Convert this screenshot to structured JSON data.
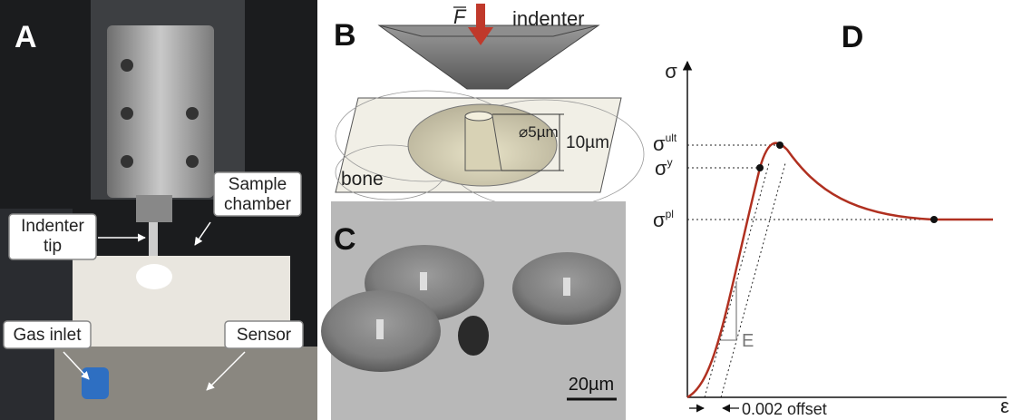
{
  "panel_a": {
    "label": "A",
    "callouts": {
      "sample_chamber": [
        "Sample",
        "chamber"
      ],
      "indenter_tip": [
        "Indenter",
        "tip"
      ],
      "gas_inlet": "Gas inlet",
      "sensor": "Sensor"
    }
  },
  "panel_b": {
    "label": "B",
    "force": "F",
    "indenter": "indenter",
    "diameter": "⌀5µm",
    "height": "10µm",
    "bone": "bone"
  },
  "panel_c": {
    "label": "C",
    "scale_bar": "20µm"
  },
  "panel_d": {
    "label": "D",
    "y_axis": "σ",
    "x_axis": "ε",
    "ultimate": {
      "symbol": "σ",
      "sup": "ult"
    },
    "yield": {
      "symbol": "σ",
      "sup": "y"
    },
    "plateau": {
      "symbol": "σ",
      "sup": "pl"
    },
    "modulus": "E",
    "offset": "0.002 offset"
  }
}
